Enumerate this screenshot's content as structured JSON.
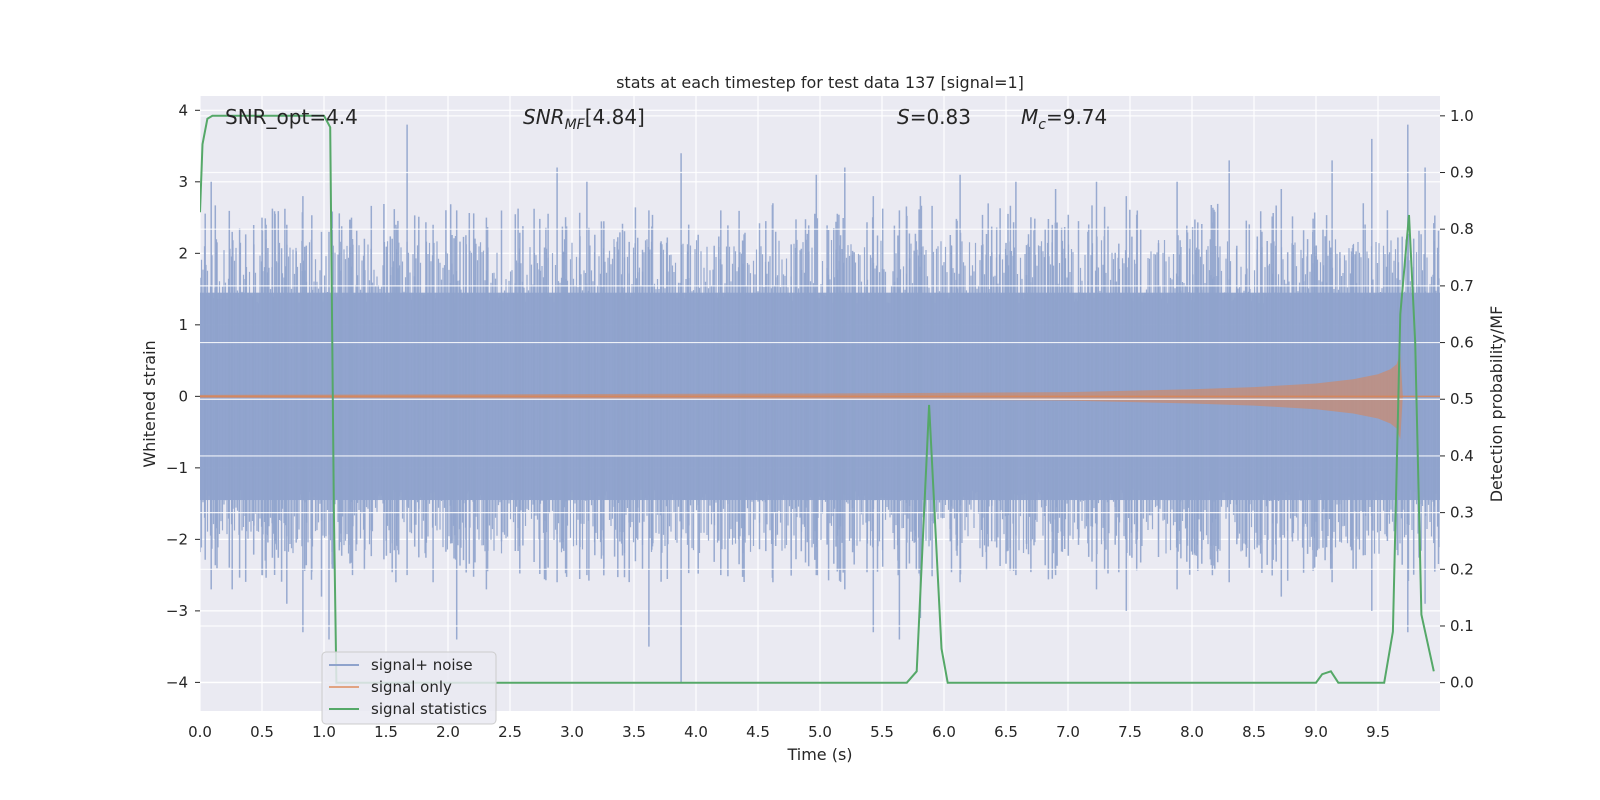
{
  "chart_data": {
    "type": "line",
    "title": "stats at each timestep for test data 137 [signal=1]",
    "xlabel": "Time (s)",
    "ylabel_left": "Whitened strain",
    "ylabel_right": "Detection probability/MF",
    "xlim": [
      0.0,
      10.0
    ],
    "ylim_left": [
      -4.4,
      4.2
    ],
    "ylim_right": [
      -0.05,
      1.035
    ],
    "x_ticks": [
      "0.0",
      "0.5",
      "1.0",
      "1.5",
      "2.0",
      "2.5",
      "3.0",
      "3.5",
      "4.0",
      "4.5",
      "5.0",
      "5.5",
      "6.0",
      "6.5",
      "7.0",
      "7.5",
      "8.0",
      "8.5",
      "9.0",
      "9.5"
    ],
    "y_left_ticks": [
      "4",
      "3",
      "2",
      "1",
      "0",
      "−1",
      "−2",
      "−3",
      "−4"
    ],
    "y_left_tick_values": [
      4,
      3,
      2,
      1,
      0,
      -1,
      -2,
      -3,
      -4
    ],
    "y_right_ticks": [
      "1.0",
      "0.9",
      "0.8",
      "0.7",
      "0.6",
      "0.5",
      "0.4",
      "0.3",
      "0.2",
      "0.1",
      "0.0"
    ],
    "y_right_tick_values": [
      1.0,
      0.9,
      0.8,
      0.7,
      0.6,
      0.5,
      0.4,
      0.3,
      0.2,
      0.1,
      0.0
    ],
    "grid": true,
    "legend_position": "lower-left",
    "annotations": {
      "snr_opt": "SNR_opt=4.4",
      "snr_mf": "[4.84]",
      "s": "=0.83",
      "mc": "=9.74"
    },
    "series": [
      {
        "name": "signal+ noise",
        "color": "#8fa3cc",
        "axis": "left",
        "note_values": "noise band approx within [-1.8, 1.8], spikes reaching about 3.8 and -4.0",
        "band_y": [
          -1.8,
          1.8
        ],
        "spikes": [
          [
            0.09,
            3.0,
            -2.7
          ],
          [
            0.26,
            2.3,
            -2.7
          ],
          [
            0.5,
            2.5,
            -2.5
          ],
          [
            0.7,
            2.4,
            -2.9
          ],
          [
            0.83,
            2.8,
            -3.3
          ],
          [
            0.98,
            2.3,
            -2.8
          ],
          [
            1.04,
            2.3,
            -3.4
          ],
          [
            1.23,
            2.2,
            -2.5
          ],
          [
            1.58,
            2.4,
            -2.6
          ],
          [
            1.67,
            3.8,
            -2.5
          ],
          [
            1.88,
            2.4,
            -2.6
          ],
          [
            2.07,
            2.6,
            -3.4
          ],
          [
            2.31,
            2.5,
            -2.7
          ],
          [
            2.88,
            3.2,
            -2.6
          ],
          [
            3.12,
            3.0,
            -2.5
          ],
          [
            3.62,
            2.6,
            -3.5
          ],
          [
            3.88,
            3.4,
            -4.0
          ],
          [
            4.2,
            2.6,
            -2.5
          ],
          [
            4.62,
            2.7,
            -2.6
          ],
          [
            4.97,
            3.1,
            -2.5
          ],
          [
            5.2,
            3.2,
            -2.7
          ],
          [
            5.43,
            2.8,
            -3.3
          ],
          [
            5.64,
            2.6,
            -3.4
          ],
          [
            5.81,
            2.8,
            -3.1
          ],
          [
            6.13,
            3.1,
            -2.6
          ],
          [
            6.58,
            3.0,
            -2.5
          ],
          [
            6.9,
            2.9,
            -2.5
          ],
          [
            7.23,
            3.0,
            -2.7
          ],
          [
            7.47,
            2.8,
            -3.0
          ],
          [
            7.88,
            3.0,
            -2.7
          ],
          [
            8.3,
            3.3,
            -2.6
          ],
          [
            8.72,
            2.9,
            -2.8
          ],
          [
            9.13,
            3.3,
            -2.6
          ],
          [
            9.45,
            3.6,
            -3.0
          ],
          [
            9.74,
            3.8,
            -3.3
          ],
          [
            9.88,
            3.2,
            -2.9
          ]
        ]
      },
      {
        "name": "signal only",
        "color": "#dd8452",
        "axis": "left",
        "x": [
          0.0,
          5.0,
          7.0,
          8.0,
          8.5,
          9.0,
          9.3,
          9.5,
          9.6,
          9.65,
          9.68,
          9.7
        ],
        "envelope": [
          0.02,
          0.04,
          0.06,
          0.1,
          0.13,
          0.18,
          0.24,
          0.31,
          0.38,
          0.45,
          0.6,
          0.0
        ]
      },
      {
        "name": "signal statistics",
        "color": "#55a868",
        "axis": "right",
        "x": [
          0.0,
          0.02,
          0.06,
          0.1,
          0.5,
          1.0,
          1.05,
          1.08,
          1.1,
          5.7,
          5.78,
          5.88,
          5.98,
          6.03,
          6.1,
          9.0,
          9.05,
          9.12,
          9.18,
          9.25,
          9.55,
          9.62,
          9.68,
          9.75,
          9.8,
          9.85,
          9.95
        ],
        "y": [
          0.83,
          0.95,
          0.995,
          1.0,
          1.0,
          1.0,
          0.98,
          0.3,
          0.0,
          0.0,
          0.02,
          0.49,
          0.06,
          0.0,
          0.0,
          0.0,
          0.015,
          0.02,
          0.0,
          0.0,
          0.0,
          0.09,
          0.65,
          0.825,
          0.6,
          0.12,
          0.02
        ]
      }
    ]
  }
}
